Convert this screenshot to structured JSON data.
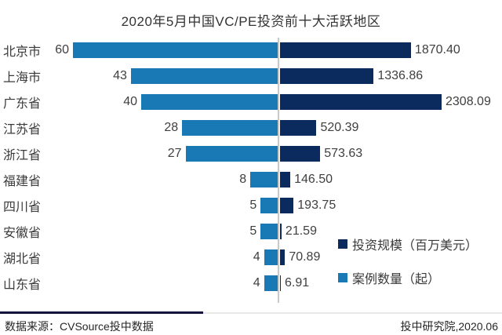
{
  "title": "2020年5月中国VC/PE投资前十大活跃地区",
  "chart_data": {
    "type": "bar",
    "orientation": "bidirectional-horizontal",
    "title": "2020年5月中国VC/PE投资前十大活跃地区",
    "categories": [
      "北京市",
      "上海市",
      "广东省",
      "江苏省",
      "浙江省",
      "福建省",
      "四川省",
      "安徽省",
      "湖北省",
      "山东省"
    ],
    "series": [
      {
        "name": "案例数量（起）",
        "side": "left",
        "color": "#1879b4",
        "values": [
          60,
          43,
          40,
          28,
          27,
          8,
          5,
          5,
          4,
          4
        ]
      },
      {
        "name": "投资规模（百万美元）",
        "side": "right",
        "color": "#0b2b5e",
        "values": [
          1870.4,
          1336.86,
          2308.09,
          520.39,
          573.63,
          146.5,
          193.75,
          21.59,
          70.89,
          6.91
        ]
      }
    ],
    "value_labels_left": [
      "60",
      "43",
      "40",
      "28",
      "27",
      "8",
      "5",
      "5",
      "4",
      "4"
    ],
    "value_labels_right": [
      "1870.40",
      "1336.86",
      "2308.09",
      "520.39",
      "573.63",
      "146.50",
      "193.75",
      "21.59",
      "70.89",
      "6.91"
    ],
    "legend_position": "right-lower",
    "grid": false,
    "axis_color": "#c9c9c9"
  },
  "legend": {
    "items": [
      {
        "label": "投资规模（百万美元）",
        "color": "#0b2b5e"
      },
      {
        "label": "案例数量（起）",
        "color": "#1879b4"
      }
    ]
  },
  "footer": {
    "source": "数据来源：CVSource投中数据",
    "publisher": "投中研究院,2020.06"
  }
}
